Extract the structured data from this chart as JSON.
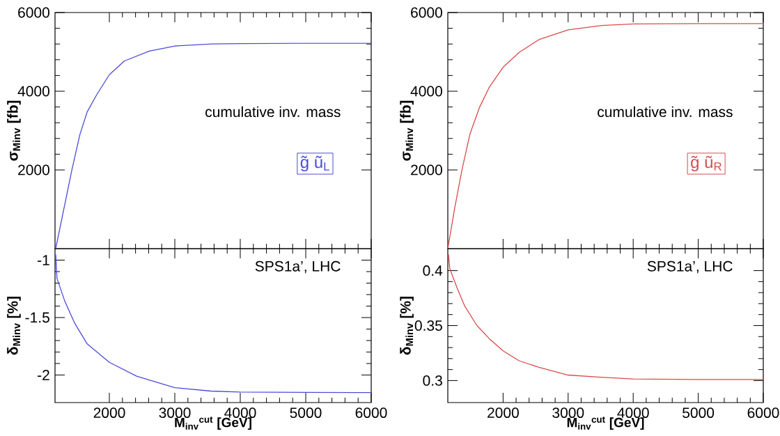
{
  "chart_data": [
    {
      "type": "line",
      "ylabel": "σ$_{Minv}$ [fb]",
      "xlim": [
        1170,
        6000
      ],
      "xticks": [
        2000,
        3000,
        4000,
        5000,
        6000
      ],
      "ylim": [
        0,
        6000
      ],
      "yticks": [
        2000,
        4000,
        6000
      ],
      "tick_labels": "y",
      "grid": false,
      "marker": "none",
      "line_style": "solid",
      "annotations": [
        "cumulative inv. mass",
        "g̃ ũ$_{L}$"
      ],
      "series": [
        {
          "color": "#4b4bdc",
          "x": [
            1180,
            1320,
            1430,
            1550,
            1660,
            1810,
            2000,
            2230,
            2610,
            3000,
            3560,
            3990,
            5000,
            6000
          ],
          "values": [
            0,
            1130,
            2020,
            2900,
            3470,
            3920,
            4420,
            4770,
            5020,
            5150,
            5200,
            5210,
            5220,
            5220
          ]
        }
      ]
    },
    {
      "type": "line",
      "ylabel": "δ$_{Minv}$ [%]",
      "xlabel": "M$_{inv}$$^{cut}$ [GeV]",
      "xlim": [
        1170,
        6000
      ],
      "xticks": [
        2000,
        3000,
        4000,
        5000,
        6000
      ],
      "ylim": [
        -2.24,
        -0.9
      ],
      "yticks": [
        -2,
        -1.5,
        -1
      ],
      "grid": false,
      "marker": "none",
      "line_style": "solid",
      "annotations": [
        "SPS1a’, LHC"
      ],
      "series": [
        {
          "color": "#4b4bdc",
          "x": [
            1180,
            1200,
            1321,
            1471,
            1662,
            2001,
            2417,
            2999,
            3553,
            3991,
            4990,
            6000
          ],
          "values": [
            -0.95,
            -1.16,
            -1.36,
            -1.55,
            -1.73,
            -1.89,
            -2.01,
            -2.11,
            -2.14,
            -2.148,
            -2.152,
            -2.153
          ]
        }
      ]
    },
    {
      "type": "line",
      "ylabel": "σ$_{Minv}$ [fb]",
      "xlim": [
        1150,
        6000
      ],
      "xticks": [
        2000,
        3000,
        4000,
        5000,
        6000
      ],
      "ylim": [
        0,
        6000
      ],
      "yticks": [
        2000,
        4000,
        6000
      ],
      "tick_labels": "y",
      "grid": false,
      "marker": "none",
      "line_style": "solid",
      "annotations": [
        "cumulative inv. mass",
        "g̃ ũ$_{R}$"
      ],
      "series": [
        {
          "color": "#d94b4b",
          "x": [
            1150,
            1260,
            1370,
            1490,
            1640,
            1790,
            2000,
            2250,
            2550,
            3000,
            3510,
            4000,
            5000,
            6000
          ],
          "values": [
            0,
            1070,
            2020,
            2910,
            3600,
            4110,
            4610,
            4990,
            5310,
            5560,
            5670,
            5710,
            5720,
            5720
          ]
        }
      ]
    },
    {
      "type": "line",
      "ylabel": "δ$_{Minv}$ [%]",
      "xlabel": "M$_{inv}$$^{cut}$ [GeV]",
      "xlim": [
        1150,
        6000
      ],
      "xticks": [
        2000,
        3000,
        4000,
        5000,
        6000
      ],
      "ylim": [
        0.28,
        0.42
      ],
      "yticks": [
        0.3,
        0.35,
        0.4
      ],
      "grid": false,
      "marker": "none",
      "line_style": "solid",
      "annotations": [
        "SPS1a’, LHC"
      ],
      "series": [
        {
          "color": "#d94b4b",
          "x": [
            1160,
            1180,
            1294,
            1408,
            1599,
            1790,
            2000,
            2247,
            2552,
            2998,
            3505,
            3999,
            5000,
            6000
          ],
          "values": [
            0.415,
            0.402,
            0.384,
            0.368,
            0.35,
            0.338,
            0.327,
            0.318,
            0.312,
            0.305,
            0.303,
            0.3015,
            0.301,
            0.301
          ]
        }
      ]
    }
  ]
}
